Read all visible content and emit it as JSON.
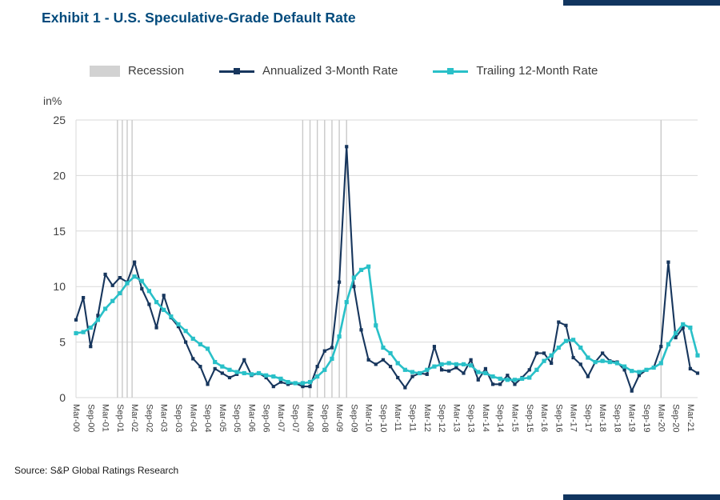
{
  "page": {
    "title": "Exhibit 1 - U.S. Speculative-Grade Default Rate",
    "source": "Source: S&P Global Ratings Research"
  },
  "colors": {
    "accent_navy": "#17365d",
    "accent_teal": "#29c0c8",
    "recession_gray": "#c9c9c9",
    "grid_gray": "#d9d9d9",
    "title_blue": "#004a7c"
  },
  "legend": [
    {
      "label": "Recession",
      "type": "area",
      "color": "#d2d2d2"
    },
    {
      "label": "Annualized 3-Month Rate",
      "type": "line",
      "color": "#17365d"
    },
    {
      "label": "Trailing 12-Month Rate",
      "type": "line",
      "color": "#29c0c8"
    }
  ],
  "chart_data": {
    "type": "line",
    "title": "Exhibit 1 - U.S. Speculative-Grade Default Rate",
    "ylabel": "in%",
    "ylim": [
      0,
      25
    ],
    "yticks": [
      0,
      5,
      10,
      15,
      20,
      25
    ],
    "grid": "horizontal",
    "legend_position": "top",
    "n_points": 86,
    "points_per_label": 2,
    "x_first_point": "Mar-00",
    "x_last_point": "Jun-21",
    "x_tick_labels": [
      "Mar-00",
      "Sep-00",
      "Mar-01",
      "Sep-01",
      "Mar-02",
      "Sep-02",
      "Mar-03",
      "Sep-03",
      "Mar-04",
      "Sep-04",
      "Mar-05",
      "Sep-05",
      "Mar-06",
      "Sep-06",
      "Mar-07",
      "Sep-07",
      "Mar-08",
      "Sep-08",
      "Mar-09",
      "Sep-09",
      "Mar-10",
      "Sep-10",
      "Mar-11",
      "Sep-11",
      "Mar-12",
      "Sep-12",
      "Mar-13",
      "Sep-13",
      "Mar-14",
      "Sep-14",
      "Mar-15",
      "Sep-15",
      "Mar-16",
      "Sep-16",
      "Mar-17",
      "Sep-17",
      "Mar-18",
      "Sep-18",
      "Mar-19",
      "Sep-19",
      "Mar-20",
      "Sep-20",
      "Mar-21"
    ],
    "label_step": 2,
    "recession_quarter_positions": [
      5.67,
      6.33,
      7.0,
      7.67,
      31,
      32,
      33,
      34,
      35,
      36,
      37,
      80
    ],
    "series": [
      {
        "name": "Annualized 3-Month Rate",
        "color": "#17365d",
        "values": [
          7.0,
          9.0,
          4.6,
          7.4,
          11.1,
          10.1,
          10.8,
          10.4,
          12.2,
          9.8,
          8.4,
          6.3,
          9.2,
          7.2,
          6.4,
          5.0,
          3.5,
          2.8,
          1.2,
          2.6,
          2.2,
          1.8,
          2.1,
          3.4,
          2.0,
          2.2,
          1.8,
          1.0,
          1.4,
          1.2,
          1.3,
          1.0,
          1.0,
          2.8,
          4.2,
          4.5,
          10.4,
          22.6,
          10.0,
          6.1,
          3.4,
          3.0,
          3.4,
          2.8,
          1.8,
          0.9,
          1.9,
          2.2,
          2.1,
          4.6,
          2.5,
          2.4,
          2.7,
          2.2,
          3.4,
          1.6,
          2.6,
          1.2,
          1.2,
          2.0,
          1.2,
          1.8,
          2.5,
          4.0,
          4.0,
          3.1,
          6.8,
          6.5,
          3.6,
          3.0,
          1.9,
          3.2,
          4.0,
          3.3,
          3.2,
          2.5,
          0.6,
          2.0,
          2.5,
          2.7,
          4.6,
          12.2,
          5.4,
          6.3,
          2.6,
          2.2
        ]
      },
      {
        "name": "Trailing 12-Month Rate",
        "color": "#29c0c8",
        "values": [
          5.8,
          5.9,
          6.3,
          7.0,
          8.0,
          8.7,
          9.4,
          10.3,
          10.9,
          10.5,
          9.6,
          8.6,
          7.9,
          7.3,
          6.6,
          6.0,
          5.3,
          4.8,
          4.4,
          3.2,
          2.8,
          2.5,
          2.3,
          2.2,
          2.1,
          2.2,
          2.0,
          1.9,
          1.7,
          1.4,
          1.3,
          1.3,
          1.4,
          1.9,
          2.5,
          3.5,
          5.5,
          8.6,
          10.8,
          11.5,
          11.8,
          6.5,
          4.5,
          4.0,
          3.1,
          2.5,
          2.3,
          2.2,
          2.5,
          2.8,
          3.0,
          3.1,
          3.0,
          3.0,
          2.9,
          2.3,
          2.2,
          1.9,
          1.7,
          1.6,
          1.6,
          1.7,
          1.8,
          2.5,
          3.3,
          3.8,
          4.5,
          5.1,
          5.2,
          4.5,
          3.6,
          3.2,
          3.3,
          3.2,
          3.1,
          2.8,
          2.4,
          2.3,
          2.5,
          2.7,
          3.1,
          4.8,
          5.8,
          6.6,
          6.3,
          3.8
        ]
      }
    ]
  }
}
